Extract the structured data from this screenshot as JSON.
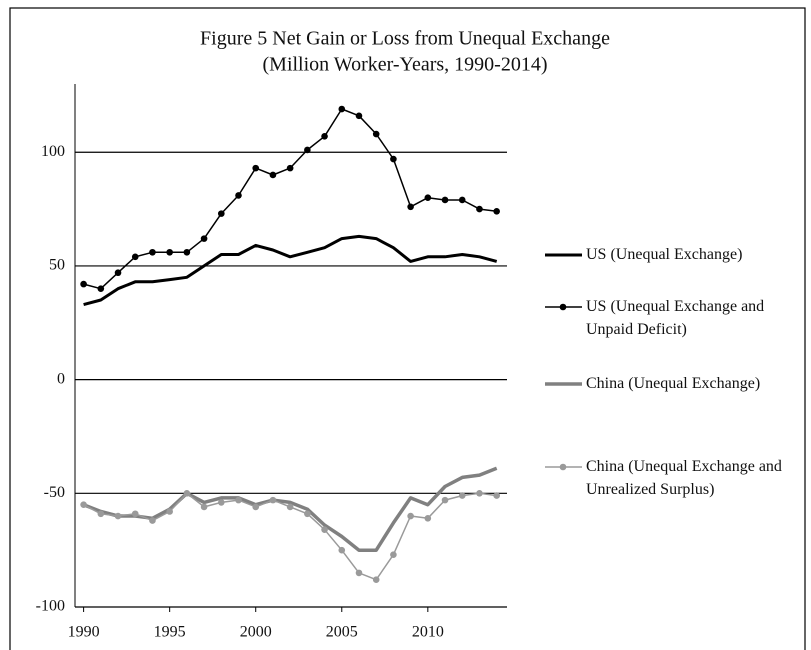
{
  "chart_data": {
    "type": "line",
    "title": "Figure 5 Net Gain or Loss from Unequal Exchange",
    "subtitle": "(Million Worker-Years, 1990-2014)",
    "x": [
      1990,
      1991,
      1992,
      1993,
      1994,
      1995,
      1996,
      1997,
      1998,
      1999,
      2000,
      2001,
      2002,
      2003,
      2004,
      2005,
      2006,
      2007,
      2008,
      2009,
      2010,
      2011,
      2012,
      2013,
      2014
    ],
    "series": [
      {
        "name": "US (Unequal Exchange)",
        "color": "#000000",
        "width": 3,
        "markers": false,
        "values": [
          33,
          35,
          40,
          43,
          43,
          44,
          45,
          50,
          55,
          55,
          59,
          57,
          54,
          56,
          58,
          62,
          63,
          62,
          58,
          52,
          54,
          54,
          55,
          54,
          52
        ]
      },
      {
        "name": "US (Unequal Exchange and Unpaid Deficit)",
        "color": "#000000",
        "width": 1.5,
        "markers": true,
        "values": [
          42,
          40,
          47,
          54,
          56,
          56,
          56,
          62,
          73,
          81,
          93,
          90,
          93,
          101,
          107,
          119,
          116,
          108,
          97,
          76,
          80,
          79,
          79,
          75,
          74
        ]
      },
      {
        "name": "China (Unequal Exchange)",
        "color": "#808080",
        "width": 3.5,
        "markers": false,
        "values": [
          -55,
          -58,
          -60,
          -60,
          -61,
          -57,
          -50,
          -54,
          -52,
          -52,
          -55,
          -53,
          -54,
          -57,
          -64,
          -69,
          -75,
          -75,
          -63,
          -52,
          -55,
          -47,
          -43,
          -42,
          -39
        ]
      },
      {
        "name": "China (Unequal Exchange and Unrealized Surplus)",
        "color": "#9a9a9a",
        "width": 1.5,
        "markers": true,
        "values": [
          -55,
          -59,
          -60,
          -59,
          -62,
          -58,
          -50,
          -56,
          -54,
          -53,
          -56,
          -53,
          -56,
          -59,
          -66,
          -75,
          -85,
          -88,
          -77,
          -60,
          -61,
          -53,
          -51,
          -50,
          -51
        ]
      }
    ],
    "xlim": [
      1989.5,
      2014.6
    ],
    "xticks": [
      1990,
      1995,
      2000,
      2005,
      2010
    ],
    "ylim": [
      -100,
      130
    ],
    "yticks": [
      -100,
      -50,
      0,
      50,
      100
    ],
    "grid": true,
    "legend": "right"
  }
}
